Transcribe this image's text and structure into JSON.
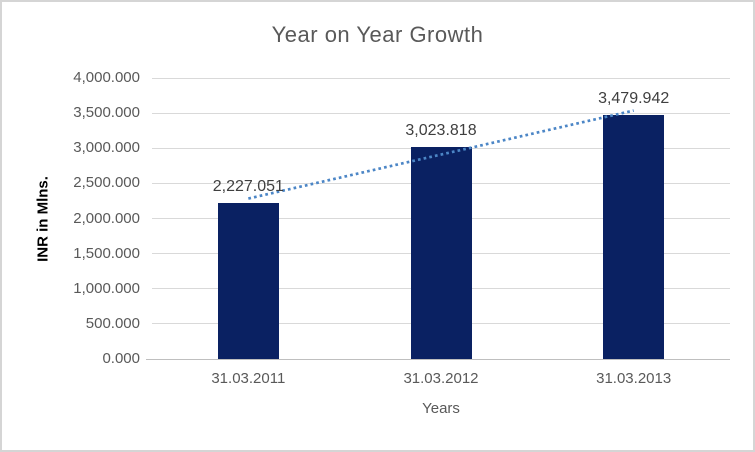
{
  "chart_data": {
    "type": "bar",
    "title": "Year on Year Growth",
    "xlabel": "Years",
    "ylabel": "INR in Mlns.",
    "categories": [
      "31.03.2011",
      "31.03.2012",
      "31.03.2013"
    ],
    "series": [
      {
        "name": "INR in Mlns.",
        "values": [
          2227.051,
          3023.818,
          3479.942
        ],
        "value_labels": [
          "2,227.051",
          "3,023.818",
          "3,479.942"
        ]
      }
    ],
    "ylim": [
      0,
      4000
    ],
    "ytick_interval": 500,
    "yticks": [
      {
        "value": 0,
        "label": "0.000"
      },
      {
        "value": 500,
        "label": "500.000"
      },
      {
        "value": 1000,
        "label": "1,000.000"
      },
      {
        "value": 1500,
        "label": "1,500.000"
      },
      {
        "value": 2000,
        "label": "2,000.000"
      },
      {
        "value": 2500,
        "label": "2,500.000"
      },
      {
        "value": 3000,
        "label": "3,000.000"
      },
      {
        "value": 3500,
        "label": "3,500.000"
      },
      {
        "value": 4000,
        "label": "4,000.000"
      }
    ],
    "grid": true,
    "legend": false,
    "trendline": {
      "type": "linear",
      "style": "dotted"
    },
    "colors": {
      "bar": "#0a2162",
      "trendline": "#4c86c6",
      "gridline": "#d9d9d9",
      "axis_line": "#bfbfbf",
      "title": "#595959",
      "tick_label": "#595959",
      "data_label": "#3f3f3f",
      "y_axis_title": "#000000",
      "x_axis_title": "#595959",
      "background": "#ffffff",
      "border": "#d5d5d5"
    }
  }
}
